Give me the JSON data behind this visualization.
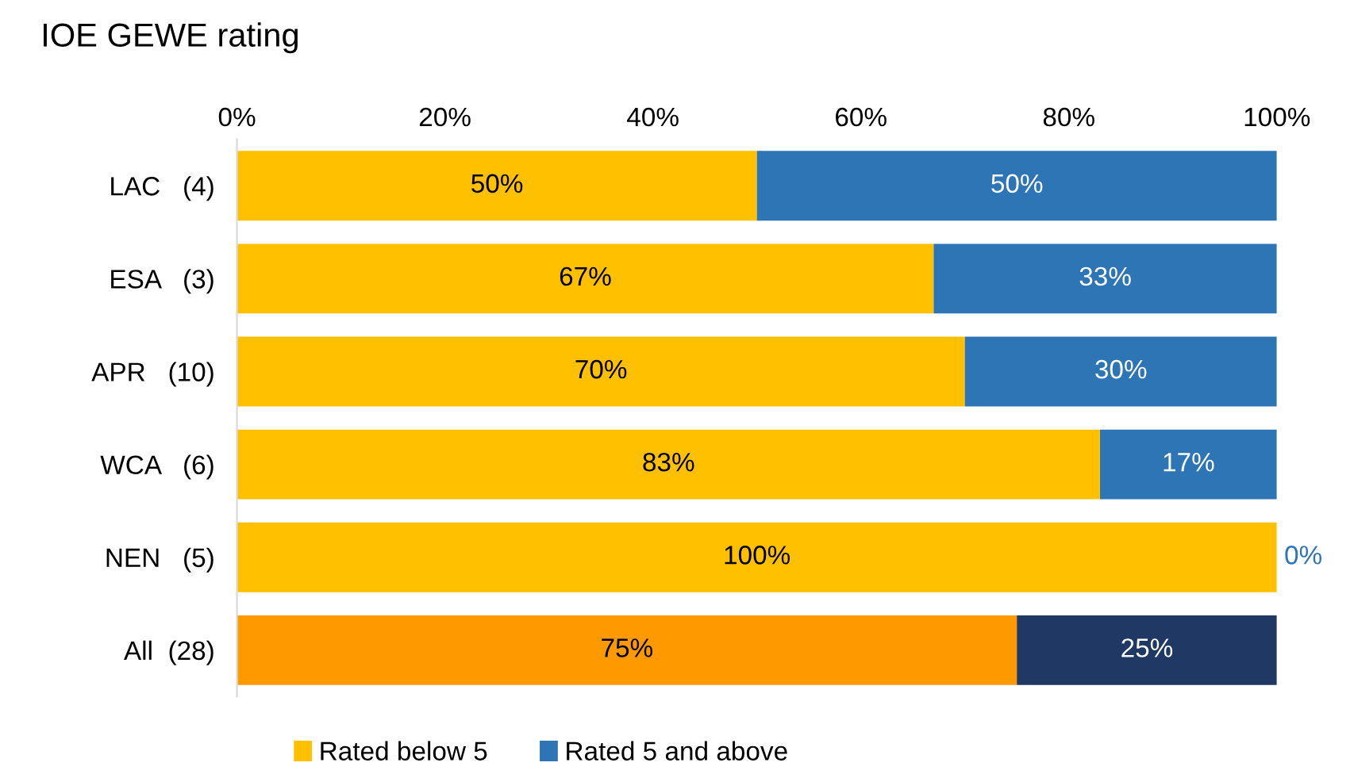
{
  "chart_data": {
    "type": "bar",
    "orientation": "horizontal",
    "stacked": true,
    "title": "IOE GEWE rating",
    "categories": [
      "LAC   (4)",
      "ESA   (3)",
      "APR   (10)",
      "WCA   (6)",
      "NEN   (5)",
      "All  (28)"
    ],
    "series": [
      {
        "name": "Rated below 5",
        "color": "#ffc000",
        "colors": [
          "#ffc000",
          "#ffc000",
          "#ffc000",
          "#ffc000",
          "#ffc000",
          "#ff9900"
        ],
        "values": [
          50,
          67,
          70,
          83,
          100,
          75
        ],
        "value_labels": [
          "50%",
          "67%",
          "70%",
          "83%",
          "100%",
          "75%"
        ]
      },
      {
        "name": "Rated 5 and above",
        "color": "#2e75b6",
        "colors": [
          "#2e75b6",
          "#2e75b6",
          "#2e75b6",
          "#2e75b6",
          "#2e75b6",
          "#1f3864"
        ],
        "values": [
          50,
          33,
          30,
          17,
          0,
          25
        ],
        "value_labels": [
          "50%",
          "33%",
          "30%",
          "17%",
          "0%",
          "25%"
        ]
      }
    ],
    "xlim": [
      0,
      100
    ],
    "xticks": [
      {
        "value": 0,
        "label": "0%"
      },
      {
        "value": 20,
        "label": "20%"
      },
      {
        "value": 40,
        "label": "40%"
      },
      {
        "value": 60,
        "label": "60%"
      },
      {
        "value": 80,
        "label": "80%"
      },
      {
        "value": 100,
        "label": "100%"
      }
    ],
    "grid": false,
    "legend": "bottom"
  }
}
